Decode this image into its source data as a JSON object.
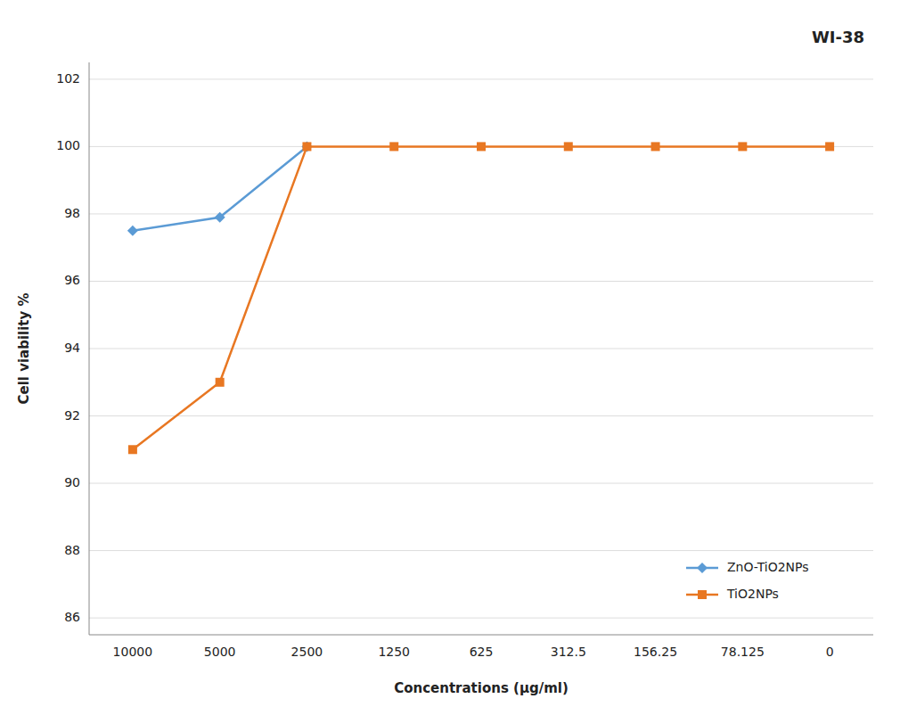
{
  "chart_data": {
    "type": "line",
    "title": "WI-38",
    "xlabel": "Concentrations (μg/ml)",
    "ylabel": "Cell viability %",
    "categories": [
      "10000",
      "5000",
      "2500",
      "1250",
      "625",
      "312.5",
      "156.25",
      "78.125",
      "0"
    ],
    "series": [
      {
        "name": "ZnO-TiO2NPs",
        "color": "#5B9BD5",
        "marker": "diamond",
        "values": [
          97.5,
          97.9,
          100.0,
          null,
          null,
          null,
          null,
          null,
          null
        ]
      },
      {
        "name": "TiO2NPs",
        "color": "#E87722",
        "marker": "square",
        "values": [
          91.0,
          93.0,
          100.0,
          100.0,
          100.0,
          100.0,
          100.0,
          100.0,
          100.0
        ]
      }
    ],
    "ylim": [
      85.5,
      102.5
    ],
    "yticks": [
      86,
      88,
      90,
      92,
      94,
      96,
      98,
      100,
      102
    ],
    "grid": true,
    "legend": "lower right"
  }
}
